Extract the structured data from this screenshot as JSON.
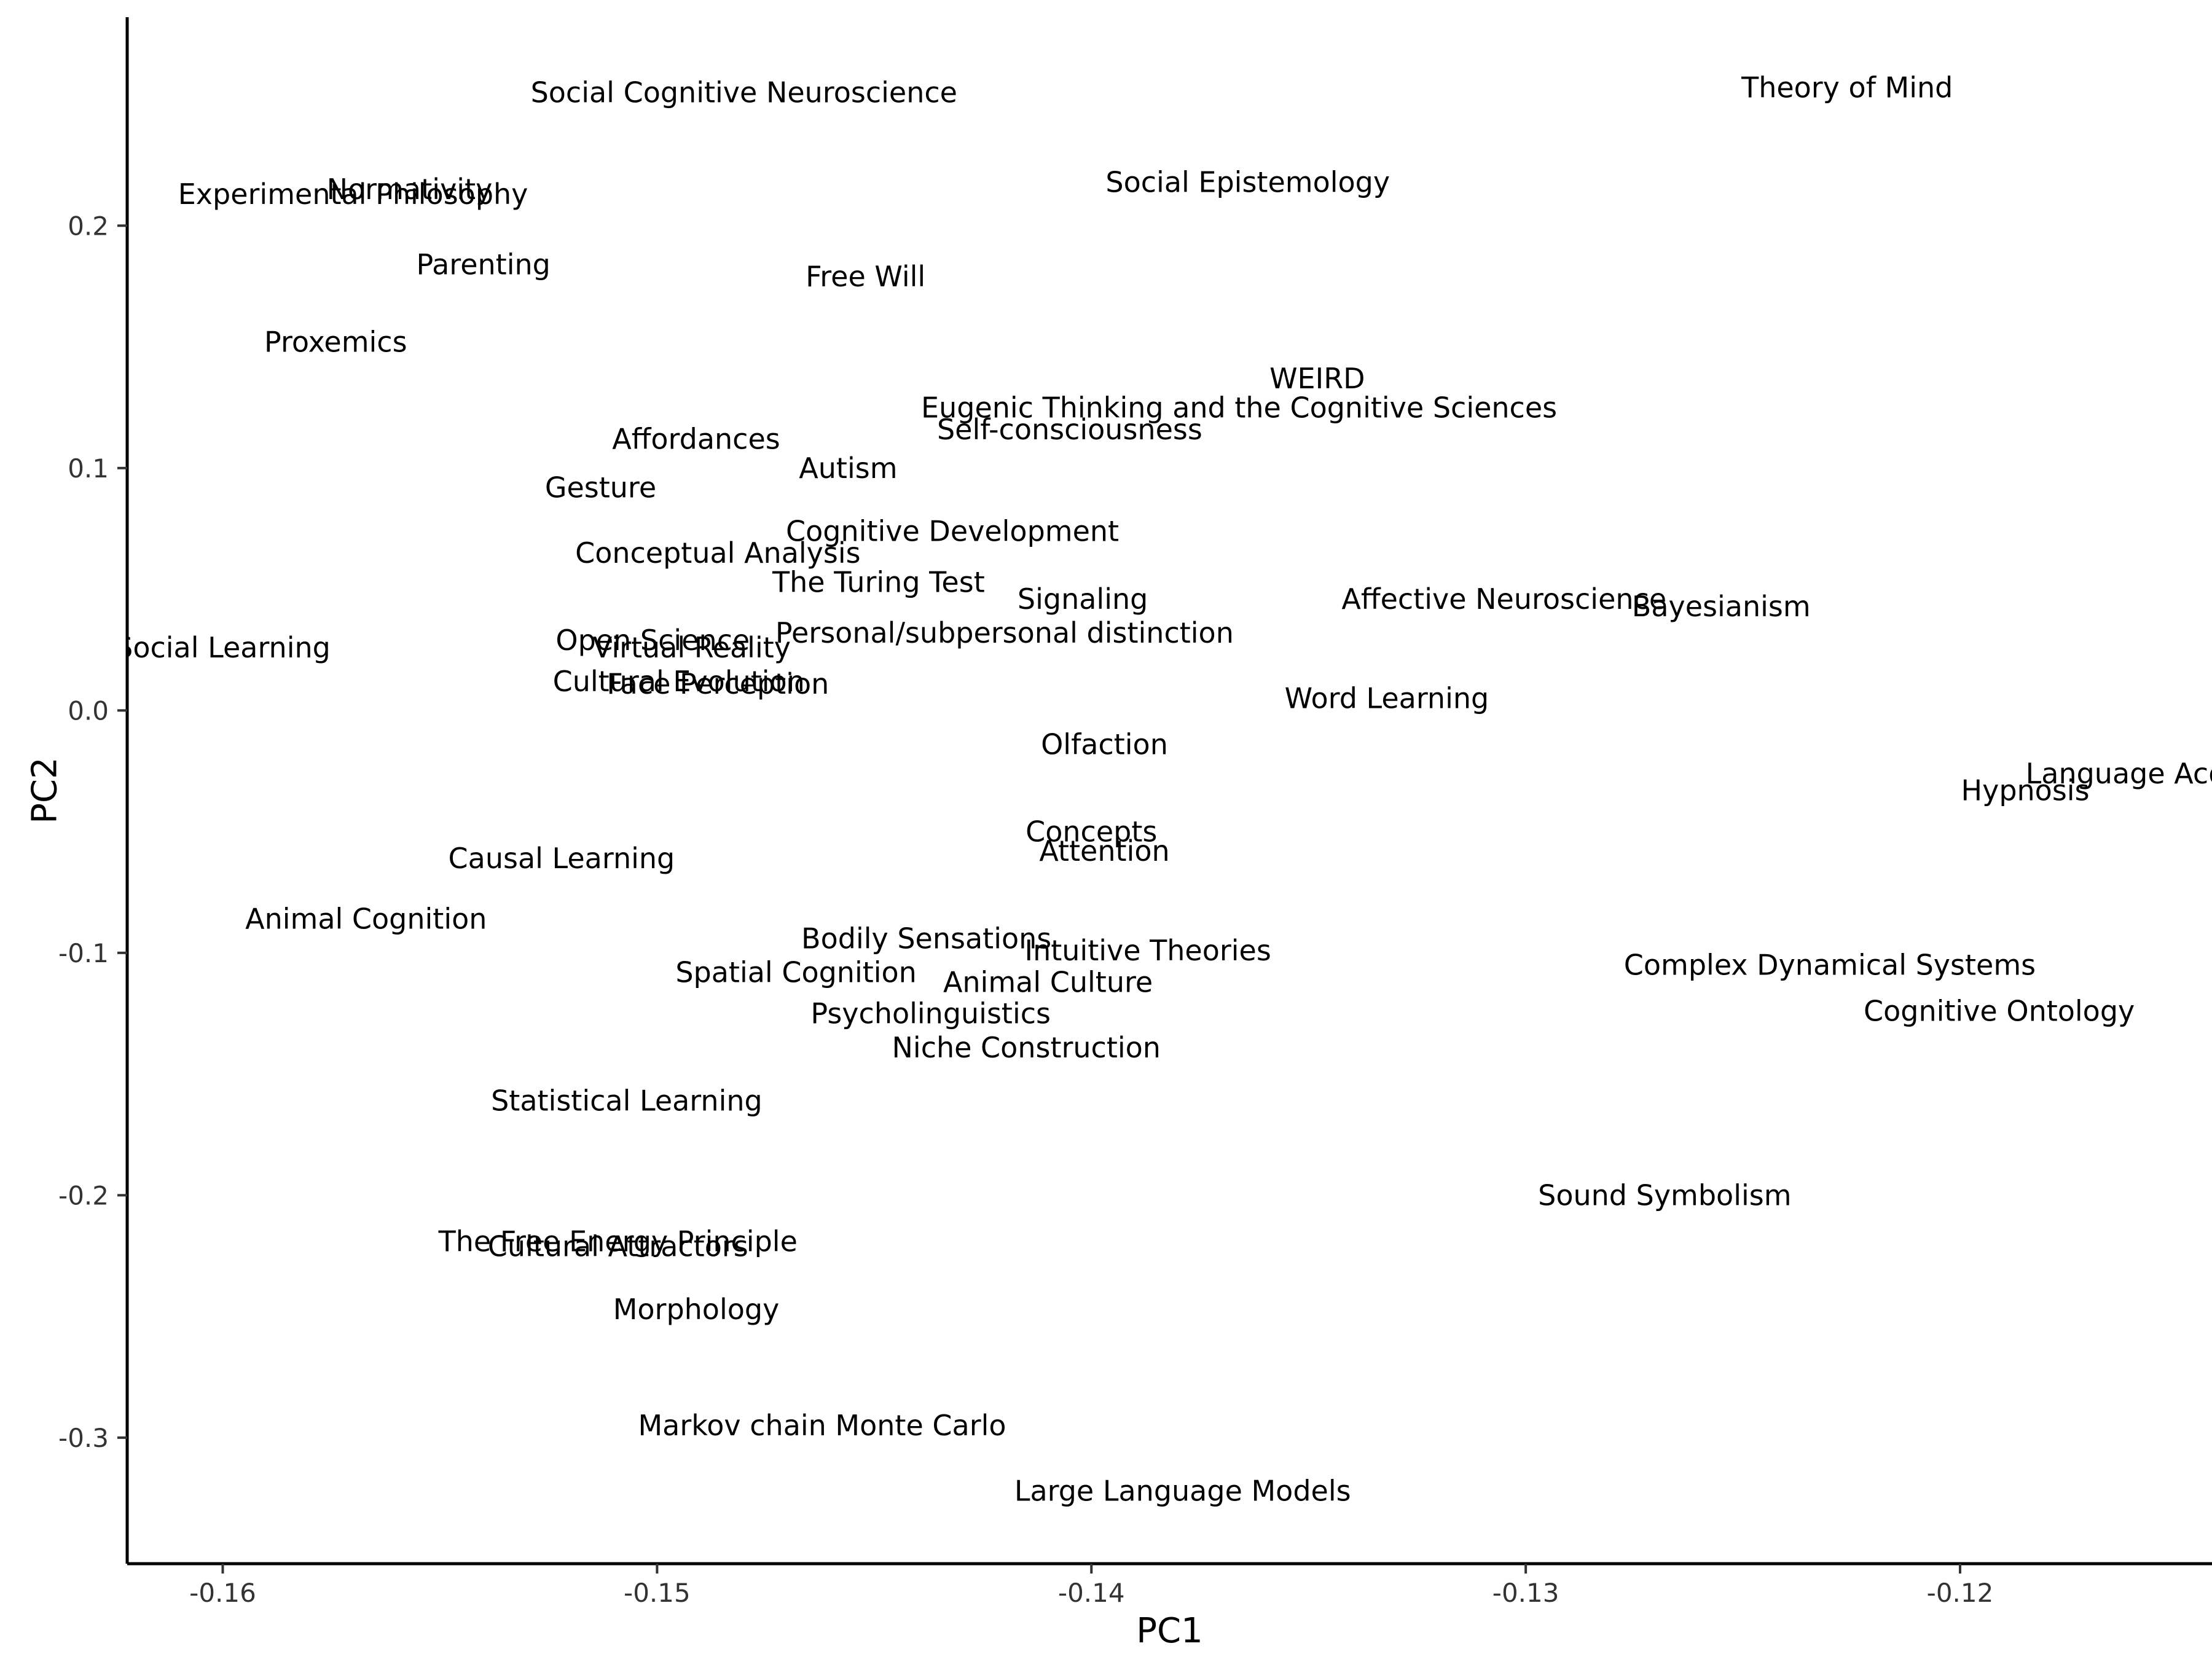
{
  "chart_data": {
    "type": "scatter",
    "xlabel": "PC1",
    "ylabel": "PC2",
    "xlim": [
      -0.1622,
      -0.1142
    ],
    "ylim": [
      -0.352,
      0.286
    ],
    "x_ticks": [
      -0.16,
      -0.15,
      -0.14,
      -0.13,
      -0.12
    ],
    "x_tick_labels": [
      "-0.16",
      "-0.15",
      "-0.14",
      "-0.13",
      "-0.12"
    ],
    "y_ticks": [
      -0.3,
      -0.2,
      -0.1,
      0.0,
      0.1,
      0.2
    ],
    "y_tick_labels": [
      "-0.3",
      "-0.2",
      "-0.1",
      "0.0",
      "0.1",
      "0.2"
    ],
    "grid": false,
    "points": [
      {
        "label": "Social Cognitive Neuroscience",
        "x": -0.148,
        "y": 0.255
      },
      {
        "label": "Theory of Mind",
        "x": -0.1226,
        "y": 0.257
      },
      {
        "label": "Normativity",
        "x": -0.1557,
        "y": 0.215
      },
      {
        "label": "Experimental Philosophy",
        "x": -0.157,
        "y": 0.213
      },
      {
        "label": "Social Epistemology",
        "x": -0.1364,
        "y": 0.218
      },
      {
        "label": "Parenting",
        "x": -0.154,
        "y": 0.184
      },
      {
        "label": "Free Will",
        "x": -0.1452,
        "y": 0.179
      },
      {
        "label": "Proxemics",
        "x": -0.1574,
        "y": 0.152
      },
      {
        "label": "WEIRD",
        "x": -0.1348,
        "y": 0.137
      },
      {
        "label": "Eugenic Thinking and the Cognitive Sciences",
        "x": -0.1366,
        "y": 0.125
      },
      {
        "label": "Self-consciousness",
        "x": -0.1405,
        "y": 0.116
      },
      {
        "label": "Affordances",
        "x": -0.1491,
        "y": 0.112
      },
      {
        "label": "Autism",
        "x": -0.1456,
        "y": 0.1
      },
      {
        "label": "Gesture",
        "x": -0.1513,
        "y": 0.092
      },
      {
        "label": "Cognitive Development",
        "x": -0.1432,
        "y": 0.074
      },
      {
        "label": "Conceptual Analysis",
        "x": -0.1486,
        "y": 0.065
      },
      {
        "label": "The Turing Test",
        "x": -0.1449,
        "y": 0.053
      },
      {
        "label": "Signaling",
        "x": -0.1402,
        "y": 0.046
      },
      {
        "label": "Affective Neuroscience",
        "x": -0.1305,
        "y": 0.046
      },
      {
        "label": "Bayesianism",
        "x": -0.1255,
        "y": 0.043
      },
      {
        "label": "Personal/subpersonal distinction",
        "x": -0.142,
        "y": 0.032
      },
      {
        "label": "Social Learning",
        "x": -0.16,
        "y": 0.026
      },
      {
        "label": "Open Science",
        "x": -0.1501,
        "y": 0.029
      },
      {
        "label": "Virtual Reality",
        "x": -0.1492,
        "y": 0.026
      },
      {
        "label": "Cultural Evolution",
        "x": -0.1495,
        "y": 0.012
      },
      {
        "label": "Face Perception",
        "x": -0.1486,
        "y": 0.011
      },
      {
        "label": "Word Learning",
        "x": -0.1332,
        "y": 0.005
      },
      {
        "label": "Olfaction",
        "x": -0.1397,
        "y": -0.014
      },
      {
        "label": "Language Acquisition",
        "x": -0.115,
        "y": -0.026
      },
      {
        "label": "Hypnosis",
        "x": -0.1185,
        "y": -0.033
      },
      {
        "label": "Concepts",
        "x": -0.14,
        "y": -0.05
      },
      {
        "label": "Attention",
        "x": -0.1397,
        "y": -0.058
      },
      {
        "label": "Causal Learning",
        "x": -0.1522,
        "y": -0.061
      },
      {
        "label": "Animal Cognition",
        "x": -0.1567,
        "y": -0.086
      },
      {
        "label": "Bodily Sensations",
        "x": -0.1438,
        "y": -0.094
      },
      {
        "label": "Intuitive Theories",
        "x": -0.1387,
        "y": -0.099
      },
      {
        "label": "Complex Dynamical Systems",
        "x": -0.123,
        "y": -0.105
      },
      {
        "label": "Spatial Cognition",
        "x": -0.1468,
        "y": -0.108
      },
      {
        "label": "Animal Culture",
        "x": -0.141,
        "y": -0.112
      },
      {
        "label": "Cognitive Ontology",
        "x": -0.1191,
        "y": -0.124
      },
      {
        "label": "Psycholinguistics",
        "x": -0.1437,
        "y": -0.125
      },
      {
        "label": "Niche Construction",
        "x": -0.1415,
        "y": -0.139
      },
      {
        "label": "Statistical Learning",
        "x": -0.1507,
        "y": -0.161
      },
      {
        "label": "Sound Symbolism",
        "x": -0.1268,
        "y": -0.2
      },
      {
        "label": "The Free Energy Principle",
        "x": -0.1509,
        "y": -0.219
      },
      {
        "label": "Cultural Attractors",
        "x": -0.1509,
        "y": -0.221
      },
      {
        "label": "Morphology",
        "x": -0.1491,
        "y": -0.247
      },
      {
        "label": "Markov chain Monte Carlo",
        "x": -0.1462,
        "y": -0.295
      },
      {
        "label": "Large Language Models",
        "x": -0.1379,
        "y": -0.322
      }
    ]
  }
}
